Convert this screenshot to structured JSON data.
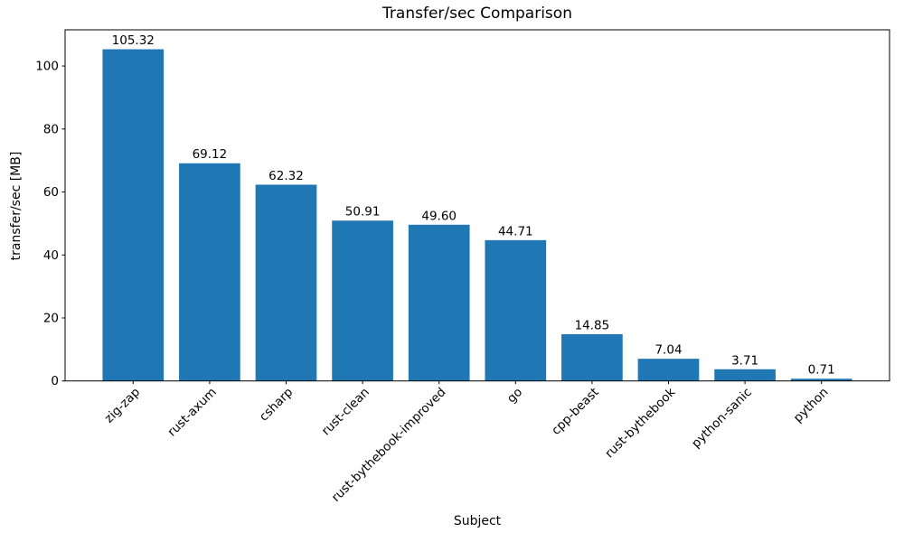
{
  "chart_data": {
    "type": "bar",
    "title": "Transfer/sec Comparison",
    "xlabel": "Subject",
    "ylabel": "transfer/sec [MB]",
    "categories": [
      "zig-zap",
      "rust-axum",
      "csharp",
      "rust-clean",
      "rust-bythebook-improved",
      "go",
      "cpp-beast",
      "rust-bythebook",
      "python-sanic",
      "python"
    ],
    "values": [
      105.32,
      69.12,
      62.32,
      50.91,
      49.6,
      44.71,
      14.85,
      7.04,
      3.71,
      0.71
    ],
    "bar_labels": [
      "105.32",
      "69.12",
      "62.32",
      "50.91",
      "49.60",
      "44.71",
      "14.85",
      "7.04",
      "3.71",
      "0.71"
    ],
    "yticks": [
      0,
      20,
      40,
      60,
      80,
      100
    ],
    "ylim": [
      0,
      111.5
    ],
    "bar_color": "#1f77b4",
    "axis_color": "#000000",
    "background_color": "#ffffff",
    "grid": false,
    "legend_position": "none",
    "bar_width_ratio": 0.8,
    "x_tick_rotation_deg": 45
  }
}
